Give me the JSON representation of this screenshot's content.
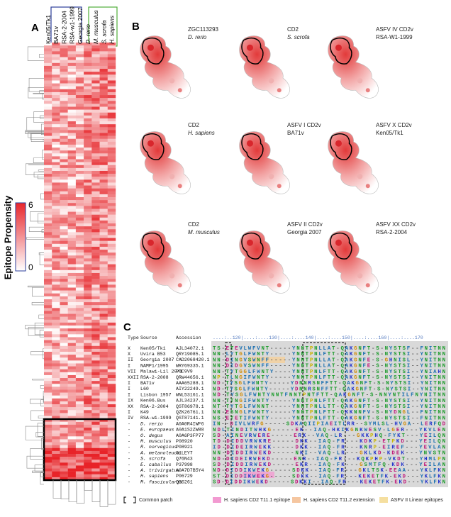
{
  "panels": [
    "A",
    "B",
    "C"
  ],
  "heatmap": {
    "columns": [
      "Ken05/Tk1",
      "BA71v",
      "RSA-2-2004",
      "RSA-w1-1999",
      "Georgia 2007",
      "D. rerio",
      "M. musculus",
      "S. scrofa",
      "H. sapiens"
    ],
    "colorbar": {
      "label": "Epitope Propensity",
      "ticks": [
        "6",
        "0"
      ]
    }
  },
  "structures": [
    {
      "line1": "ZGC113293",
      "line2": "D. rerio"
    },
    {
      "line1": "CD2",
      "line2": "S. scrofa"
    },
    {
      "line1": "ASFV IV CD2v",
      "line2": "RSA-W1-1999"
    },
    {
      "line1": "CD2",
      "line2": "H. sapiens"
    },
    {
      "line1": "ASFV I CD2v",
      "line2": "BA71v"
    },
    {
      "line1": "ASFV X CD2v",
      "line2": "Ken05/Tk1"
    },
    {
      "line1": "CD2",
      "line2": "M. musculus"
    },
    {
      "line1": "ASFV II CD2v",
      "line2": "Georgia 2007"
    },
    {
      "line1": "ASFV XX CD2v",
      "line2": "RSA-2-2004"
    }
  ],
  "alignment": {
    "header": [
      "Type",
      "Source",
      "Accession"
    ],
    "ruler": "....:..120|....:....130|....:....140|....:....150|....:....160|....:....170",
    "rows": [
      [
        "X",
        "Ken05/Tk1",
        "AJL34072.1",
        "TS-ETEVLWFVNT-----YNNTPNLLAT-QAKGNFT-S-NYSTSF--FNITNN"
      ],
      [
        "X",
        "Uvira B53",
        "QRY19085.1",
        "NN-LYTGLFWNTY-----YNNTPNLFTT-QAKGNFT-S-NYSTSI--YNITNN"
      ],
      [
        "II",
        "Georgia 2007",
        "CAD2068420.1",
        "NN-DINGVSWNFF-----YNNTPNLLAT-QAKGNFE-S-GHNISL--YNITNN"
      ],
      [
        "I",
        "NAMP1/1995",
        "WRY69335.1",
        "NN-DIDGVSWNFF-----YNNTPNLLAT-QAKGNFE-S-NYSTSI--YNITNN"
      ],
      [
        "VII",
        "Malawi-Lil 20/1",
        "P0C9V9",
        "NN-TYTGGLFWNTY----YNNTPNLFTT-QAKGNFT-S-NYSTSI--YNIAHN"
      ],
      [
        "XXII",
        "RSA-2-2008",
        "QRW44656.1",
        "NP-TLNGIFWNTY-----YNNTPNLFTT-QAKGNFT-S-NYSTSI--YNITNN"
      ],
      [
        "I",
        "BA71v",
        "AAA65288.1",
        "ND-TYSGLFWNTY-----YDNNRSNFFTT-QAKGNFT-S-NYSTSI--YNITNN"
      ],
      [
        "I",
        "L60",
        "AIY22249.1",
        "ND-TYSGLFWNTY-----YDNNRSNFFTT-QAKGNFT-S-NYSTSI--YNITNN"
      ],
      [
        "I",
        "Lisbon 1957",
        "WNL53161.1",
        "ND-TYSGLFWNTYNNTFNNTPNTFTT-QAKGNFT-S-NNYNTILFNYNITNN"
      ],
      [
        "IX",
        "Ken06.Bus",
        "AJL34237.1",
        "NN-TTNGIFWNTY-----YNNTPNLFTT-QAKGNFT-S-NYSTSI--YNITNN"
      ],
      [
        "XX",
        "RSA-2-2004",
        "QST86978.1",
        "NT-TYTGLFWNNT-----YNNTPNLLTT-QAKGNFT-S-NYSTSI--YNITNN"
      ],
      [
        "I",
        "K49",
        "QZK26761.1",
        "NN-ESNGLFWNTY-----YNNTPNLFTT-QKKNNFV-S-NYDNGL--FNITNN"
      ],
      [
        "IV",
        "RSA-w1-1999",
        "QST87141.1",
        "NS-ETETIFWNTY-----YNNTPNLFTT-QAKGNFT-S-NYSTSI--FNITNN"
      ],
      [
        "-",
        "D. rerio",
        "A0A0R4IWF6",
        "IN--DIVLWRFG-----SDKAQIIPIAEITLRR--SYMLSL-HVGA--LERFQD"
      ],
      [
        "-",
        "E. europaeus",
        "A0A1S2ZW88",
        "NDLTINDITWHKG-----EK--IAQ-HKIKGNKWESV-LGER---YKVLEN"
      ],
      [
        "-",
        "O. degus",
        "A0A6P3FP77",
        "SD-AINEVRWERE-----ERK--VAQ-LR---GKKPHQ-FYKT---YEILQN"
      ],
      [
        "-",
        "M. musculus",
        "P08920",
        "TD-DIDDVRWKRE-----DKK--IAQ-FR---KDKP-ETPKD---YEILQN"
      ],
      [
        "-",
        "R. norvegicus",
        "P08921",
        "ID-DIDEIRWEKK-----DKK--IAQ-FR---KNRP-EIREF---YEVLAN"
      ],
      [
        "-",
        "A. melanoleuca",
        "G1LEY7",
        "NN-DIDDIRWEKD-----NKI--VAQ-LR---GKLKD-KDEK---YNVSTN"
      ],
      [
        "-",
        "S. scrofa",
        "Q76N43",
        "ND-DIDEIRWEKD-----ENR--IAQ-FR---KQKPHP-VKDT---YHMLPN"
      ],
      [
        "-",
        "E. caballus",
        "P37998",
        "SD-DIDDIRWEKD-----EKR--IAQ-FK---GSMTFQ-KDK---YEILAN"
      ],
      [
        "-",
        "A. trivirgatus",
        "A0A7D7B5Y4",
        "ND-DIDDIKWEKG-----SDKK--IAQ-FR---GKLTSK-EEAA---YKLFKN"
      ],
      [
        "-",
        "H. sapiens",
        "P06729",
        "ST-DIDDIKWEKG-----SDKK--IAQ-FR---KEKETFK-EKD---YKLFKN"
      ],
      [
        "-",
        "M. fascicularis",
        "Q6S261",
        "SD-DIDDIKWEKD-----SDKKI--IAQ-FR---KEKETFK-EKD---YKLFKN"
      ]
    ],
    "legend": [
      "Common patch",
      "H. sapiens CD2 T11.1 epitope",
      "H. sapiens CD2 T11.2 extension",
      "ASFV II Linear epitopes"
    ]
  }
}
